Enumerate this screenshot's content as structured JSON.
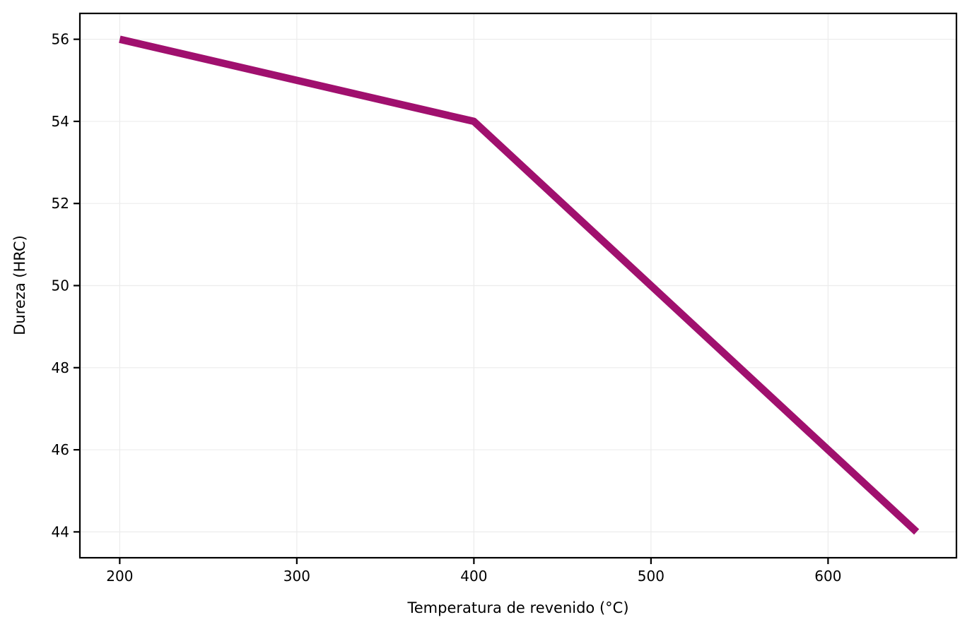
{
  "figure": {
    "background": "#ffffff"
  },
  "chart_data": {
    "type": "line",
    "title": "",
    "xlabel": "Temperatura de revenido (°C)",
    "ylabel": "Dureza (HRC)",
    "series": [
      {
        "name": "Dureza (HRC)",
        "x": [
          200,
          400,
          650
        ],
        "values": [
          56,
          54,
          44
        ]
      }
    ],
    "xticks": [
      200,
      300,
      400,
      500,
      600
    ],
    "yticks": [
      44,
      46,
      48,
      50,
      52,
      54,
      56
    ],
    "xlim": [
      177.5,
      672.5
    ],
    "ylim": [
      43.37,
      56.63
    ],
    "grid": true,
    "legend_position": "none",
    "colors": {
      "line": "#A0106E",
      "grid": "#ececec",
      "spine": "#000000",
      "tick_text": "#000000"
    }
  }
}
